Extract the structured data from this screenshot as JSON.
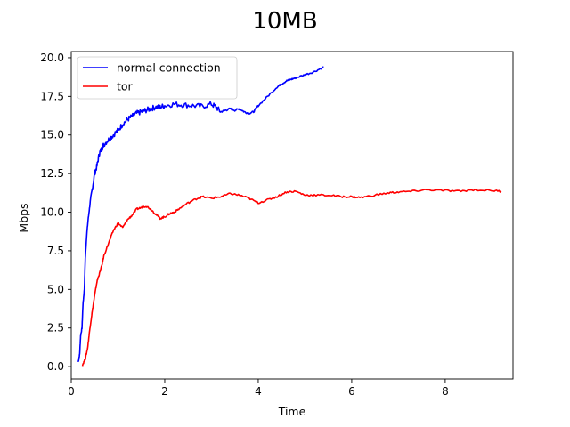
{
  "chart_data": {
    "type": "line",
    "title": "10MB",
    "xlabel": "Time",
    "ylabel": "Mbps",
    "xlim": [
      0,
      9.45
    ],
    "ylim": [
      -0.8,
      20.4
    ],
    "xticks": [
      0,
      2,
      4,
      6,
      8
    ],
    "xtick_labels": [
      "0",
      "2",
      "4",
      "6",
      "8"
    ],
    "yticks": [
      0.0,
      2.5,
      5.0,
      7.5,
      10.0,
      12.5,
      15.0,
      17.5,
      20.0
    ],
    "ytick_labels": [
      "0.0",
      "2.5",
      "5.0",
      "7.5",
      "10.0",
      "12.5",
      "15.0",
      "17.5",
      "20.0"
    ],
    "grid": false,
    "legend_position": "top-left",
    "series": [
      {
        "name": "normal connection",
        "color": "#0000ff",
        "x": [
          0.15,
          0.18,
          0.2,
          0.23,
          0.25,
          0.28,
          0.3,
          0.33,
          0.36,
          0.4,
          0.45,
          0.5,
          0.55,
          0.6,
          0.65,
          0.7,
          0.8,
          0.9,
          1.0,
          1.1,
          1.2,
          1.3,
          1.4,
          1.5,
          1.6,
          1.7,
          1.8,
          1.9,
          2.0,
          2.2,
          2.4,
          2.6,
          2.8,
          3.0,
          3.1,
          3.2,
          3.3,
          3.4,
          3.5,
          3.6,
          3.7,
          3.8,
          3.9,
          4.0,
          4.2,
          4.4,
          4.5,
          4.6,
          4.7,
          4.8,
          5.0,
          5.2,
          5.4
        ],
        "y": [
          0.3,
          0.8,
          2.0,
          2.5,
          4.0,
          5.0,
          7.0,
          8.5,
          9.5,
          10.5,
          11.5,
          12.5,
          13.0,
          13.8,
          14.1,
          14.4,
          14.7,
          15.0,
          15.3,
          15.7,
          16.0,
          16.2,
          16.4,
          16.5,
          16.6,
          16.7,
          16.8,
          16.8,
          16.9,
          17.0,
          16.95,
          16.9,
          16.85,
          17.0,
          16.8,
          16.5,
          16.6,
          16.7,
          16.6,
          16.7,
          16.5,
          16.4,
          16.5,
          16.9,
          17.5,
          18.1,
          18.3,
          18.5,
          18.6,
          18.7,
          18.9,
          19.1,
          19.4
        ]
      },
      {
        "name": "tor",
        "color": "#ff0000",
        "x": [
          0.24,
          0.3,
          0.35,
          0.4,
          0.45,
          0.5,
          0.55,
          0.6,
          0.65,
          0.7,
          0.8,
          0.9,
          1.0,
          1.1,
          1.2,
          1.3,
          1.4,
          1.5,
          1.6,
          1.7,
          1.8,
          1.9,
          2.0,
          2.1,
          2.2,
          2.3,
          2.5,
          2.7,
          2.8,
          3.0,
          3.2,
          3.4,
          3.6,
          3.8,
          4.0,
          4.2,
          4.4,
          4.6,
          4.8,
          5.0,
          5.2,
          5.5,
          5.8,
          6.0,
          6.2,
          6.5,
          6.8,
          7.0,
          7.3,
          7.6,
          8.0,
          8.3,
          8.6,
          9.0,
          9.2
        ],
        "y": [
          0.1,
          0.5,
          1.2,
          2.5,
          3.6,
          4.6,
          5.5,
          6.0,
          6.5,
          7.2,
          8.0,
          8.8,
          9.3,
          9.0,
          9.5,
          9.8,
          10.2,
          10.3,
          10.4,
          10.2,
          9.9,
          9.6,
          9.7,
          9.9,
          10.0,
          10.2,
          10.6,
          10.9,
          11.0,
          10.9,
          11.0,
          11.2,
          11.1,
          10.9,
          10.6,
          10.8,
          11.0,
          11.3,
          11.35,
          11.1,
          11.1,
          11.1,
          11.0,
          11.0,
          10.95,
          11.1,
          11.25,
          11.3,
          11.35,
          11.45,
          11.4,
          11.35,
          11.45,
          11.4,
          11.35
        ]
      }
    ]
  }
}
